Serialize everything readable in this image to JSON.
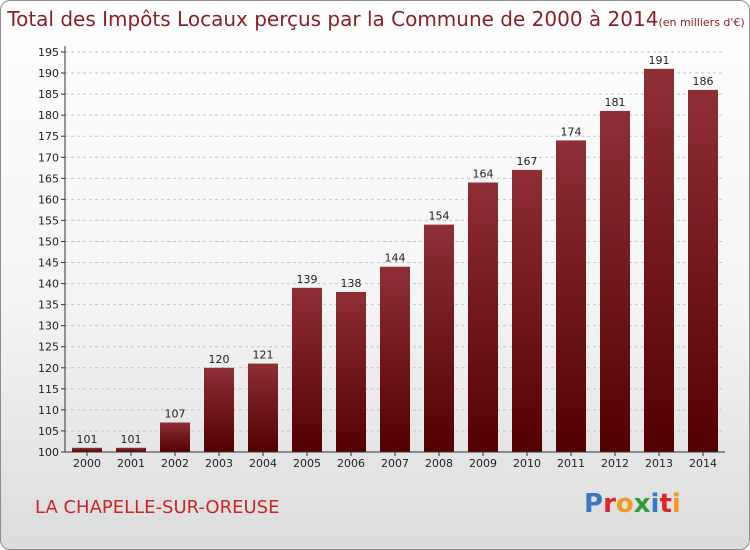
{
  "chart_data": {
    "type": "bar",
    "title": "Total des Impôts Locaux perçus par la Commune de 2000 à 2014",
    "unit_label": "(en milliers d'€)",
    "categories": [
      "2000",
      "2001",
      "2002",
      "2003",
      "2004",
      "2005",
      "2006",
      "2007",
      "2008",
      "2009",
      "2010",
      "2011",
      "2012",
      "2013",
      "2014"
    ],
    "values": [
      101,
      101,
      107,
      120,
      121,
      139,
      138,
      144,
      154,
      164,
      167,
      174,
      181,
      191,
      186
    ],
    "ylim": [
      100,
      195
    ],
    "ytick_step": 5,
    "xlabel": "",
    "ylabel": "",
    "bar_color_top": "#8e2f35",
    "bar_color_bottom": "#530000"
  },
  "footer": {
    "commune": "LA CHAPELLE-SUR-OREUSE",
    "brand_letters": [
      {
        "ch": "P",
        "color": "#3a78c2"
      },
      {
        "ch": "r",
        "color": "#e0262d"
      },
      {
        "ch": "o",
        "color": "#f29a1f"
      },
      {
        "ch": "x",
        "color": "#2c9e3a"
      },
      {
        "ch": "i",
        "color": "#3a78c2"
      },
      {
        "ch": "t",
        "color": "#e0262d"
      },
      {
        "ch": "i",
        "color": "#f29a1f"
      }
    ]
  }
}
